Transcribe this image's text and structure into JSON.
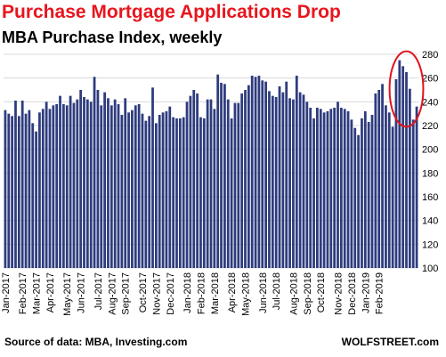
{
  "header": {
    "title": "Purchase Mortgage Applications Drop",
    "subtitle": "MBA Purchase Index, weekly"
  },
  "footer": {
    "source": "Source of data: MBA, Investing.com",
    "credit": "WOLFSTREET.com"
  },
  "colors": {
    "bar": "#2e3c7e",
    "grid": "#d9d9d9",
    "title": "#e8151d",
    "highlight": "#e0141c"
  },
  "chart_data": {
    "type": "bar",
    "ylim": [
      100,
      280
    ],
    "yticks": [
      100,
      120,
      140,
      160,
      180,
      200,
      220,
      240,
      260,
      280
    ],
    "y_axis_side": "right",
    "grid": true,
    "x_tick_labels": [
      "Jan-2017",
      "Feb-2017",
      "Mar-2017",
      "Apr-2017",
      "May-2017",
      "Jun-2017",
      "Jul-2017",
      "Aug-2017",
      "Sep-2017",
      "Oct-2017",
      "Nov-2017",
      "Dec-2017",
      "Jan-2018",
      "Feb-2018",
      "Mar-2018",
      "Apr-2018",
      "May-2018",
      "Jun-2018",
      "Jul-2018",
      "Aug-2018",
      "Sep-2018",
      "Oct-2018",
      "Nov-2018",
      "Dec-2018",
      "Jan-2019",
      "Feb-2019"
    ],
    "x_tick_bar_index": [
      0,
      5,
      9,
      13,
      18,
      22,
      27,
      31,
      35,
      40,
      44,
      48,
      53,
      57,
      61,
      66,
      70,
      75,
      79,
      84,
      88,
      92,
      97,
      101,
      105,
      109
    ],
    "values": [
      233,
      230,
      228,
      241,
      228,
      241,
      230,
      233,
      222,
      215,
      231,
      234,
      240,
      234,
      237,
      238,
      245,
      238,
      237,
      245,
      239,
      242,
      250,
      244,
      242,
      240,
      261,
      250,
      237,
      248,
      243,
      237,
      242,
      238,
      229,
      243,
      231,
      233,
      237,
      238,
      230,
      224,
      228,
      252,
      222,
      229,
      231,
      232,
      236,
      227,
      226,
      226,
      227,
      240,
      245,
      250,
      247,
      227,
      226,
      242,
      242,
      234,
      263,
      256,
      255,
      242,
      226,
      239,
      239,
      247,
      250,
      254,
      262,
      261,
      262,
      258,
      257,
      249,
      245,
      244,
      253,
      248,
      257,
      243,
      242,
      262,
      248,
      246,
      240,
      235,
      226,
      235,
      234,
      231,
      232,
      234,
      235,
      240,
      235,
      234,
      232,
      225,
      218,
      212,
      226,
      232,
      223,
      229,
      247,
      250,
      255,
      237,
      231,
      219,
      259,
      275,
      270,
      265,
      251,
      225,
      236
    ],
    "annotation": {
      "type": "ellipse",
      "bar_range": [
        114,
        120
      ]
    }
  }
}
